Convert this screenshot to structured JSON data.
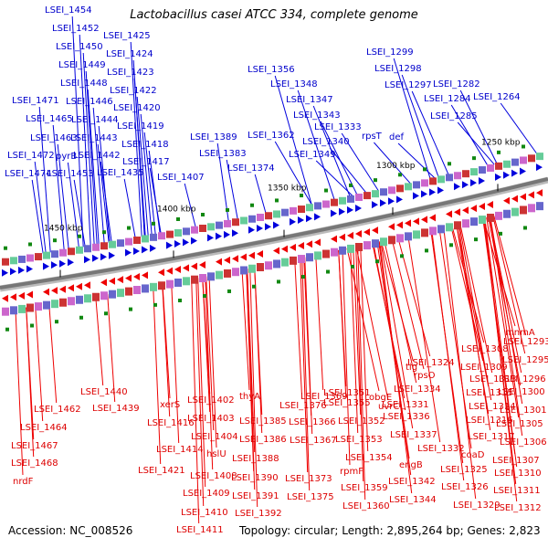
{
  "title": "Lactobacillus casei ATCC 334, complete genome",
  "footer": {
    "accession": "Accession: NC_008526",
    "topology": "Topology: circular; Length: 2,895,264 bp; Genes: 2,823"
  },
  "scale_labels": [
    "1450 kbp",
    "1400 kbp",
    "1350 kbp",
    "1300 kbp",
    "1250 kbp"
  ],
  "colors": {
    "forward": "#0000dd",
    "reverse": "#ee0000",
    "backbone": "#888888"
  },
  "forward_genes": [
    "LSEI_1454",
    "LSEI_1452",
    "LSEI_1450",
    "LSEI_1449",
    "LSEI_1448",
    "LSEI_1446",
    "LSEI_1444",
    "LSEI_1443",
    "LSEI_1442",
    "LSEI_1471",
    "LSEI_1465",
    "LSEI_1463",
    "LSEI_1472",
    "LSEI_1474",
    "pyrB",
    "LSEI_1453",
    "LSEI_1425",
    "LSEI_1424",
    "LSEI_1423",
    "LSEI_1422",
    "LSEI_1420",
    "LSEI_1419",
    "LSEI_1418",
    "LSEI_1417",
    "LSEI_1435",
    "LSEI_1407",
    "LSEI_1389",
    "LSEI_1383",
    "LSEI_1374",
    "LSEI_1356",
    "LSEI_1348",
    "LSEI_1347",
    "LSEI_1343",
    "LSEI_1362",
    "LSEI_1340",
    "LSEI_1349",
    "LSEI_1333",
    "rpsT",
    "def",
    "LSEI_1299",
    "LSEI_1298",
    "LSEI_1297",
    "LSEI_1282",
    "LSEI_1284",
    "LSEI_1285",
    "LSEI_1264"
  ],
  "reverse_genes": [
    "LSEI_1440",
    "LSEI_1439",
    "LSEI_1462",
    "LSEI_1464",
    "LSEI_1467",
    "LSEI_1468",
    "nrdF",
    "xerS",
    "LSEI_1416",
    "LSEI_1414",
    "LSEI_1421",
    "LSEI_1402",
    "LSEI_1403",
    "LSEI_1404",
    "hslU",
    "LSEI_1408",
    "LSEI_1409",
    "LSEI_1410",
    "LSEI_1411",
    "thyA",
    "LSEI_1385",
    "LSEI_1386",
    "LSEI_1388",
    "LSEI_1390",
    "LSEI_1391",
    "LSEI_1392",
    "LSEI_1369",
    "LSEI_1376",
    "LSEI_1366",
    "LSEI_1367",
    "LSEI_1373",
    "LSEI_1375",
    "obgE",
    "LSEI_1355",
    "LSEI_1352",
    "LSEI_1353",
    "LSEI_1354",
    "rpmF",
    "LSEI_1359",
    "LSEI_1360",
    "LSEI_1351",
    "tig",
    "rpsO",
    "LSEI_1324",
    "LSEI_1334",
    "uvrC",
    "LSEI_1331",
    "LSEI_1336",
    "LSEI_1337",
    "LSEI_1332",
    "engB",
    "LSEI_1342",
    "LSEI_1344",
    "LSEI_1326",
    "LSEI_1325",
    "LSEI_1329",
    "LSEI_1308",
    "LSEI_1309",
    "LSEI_1313",
    "LSEI_1315",
    "LSEI_1314",
    "LSEI_1316",
    "LSEI_1317",
    "coaD",
    "LSEI_1310",
    "LSEI_1311",
    "LSEI_1312",
    "mnmA",
    "LSEI_1293",
    "LSEI_1295",
    "LSEI_1296",
    "LSEI_1300",
    "LSEI_1301",
    "LSEI_1305",
    "LSEI_1306",
    "LSEI_1307"
  ]
}
